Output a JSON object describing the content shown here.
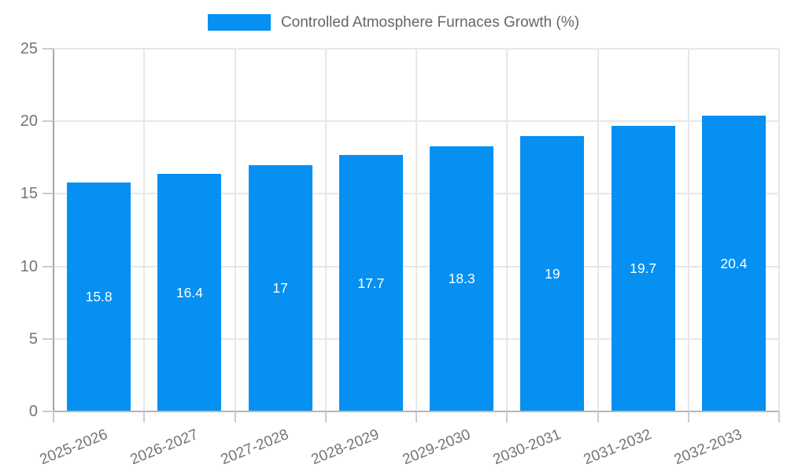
{
  "chart_data": {
    "type": "bar",
    "title": "Controlled Atmosphere Furnaces Growth (%)",
    "categories": [
      "2025-2026",
      "2026-2027",
      "2027-2028",
      "2028-2029",
      "2029-2030",
      "2030-2031",
      "2031-2032",
      "2032-2033"
    ],
    "values": [
      15.8,
      16.4,
      17,
      17.7,
      18.3,
      19,
      19.7,
      20.4
    ],
    "value_labels": [
      "15.8",
      "16.4",
      "17",
      "17.7",
      "18.3",
      "19",
      "19.7",
      "20.4"
    ],
    "xlabel": "",
    "ylabel": "",
    "ylim": [
      0,
      25
    ],
    "yticks": [
      0,
      5,
      10,
      15,
      20,
      25
    ],
    "grid": true,
    "legend_position": "top",
    "colors": {
      "bar": "#0590f2",
      "bar_value_text": "#ffffff",
      "gridline": "#e7e7e7",
      "axis_line": "#a6a6a6",
      "tick_text": "#757575",
      "legend_text": "#666666"
    }
  }
}
